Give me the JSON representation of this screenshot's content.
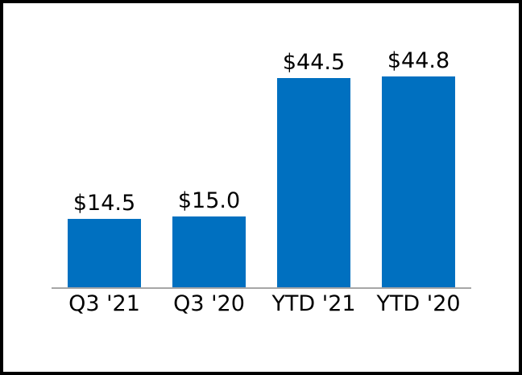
{
  "chart_data": {
    "type": "bar",
    "categories": [
      "Q3 '21",
      "Q3 '20",
      "YTD '21",
      "YTD '20"
    ],
    "values": [
      14.5,
      15.0,
      44.5,
      44.8
    ],
    "value_labels": [
      "$14.5",
      "$15.0",
      "$44.5",
      "$44.8"
    ],
    "title": "",
    "xlabel": "",
    "ylabel": "",
    "ylim": [
      0,
      45
    ],
    "grid": false,
    "legend": false,
    "bar_color": "#0070C0",
    "axis_line_color": "#A6A6A6",
    "text_color": "#000000",
    "frame_border_color": "#000000",
    "background_color": "#FFFFFF"
  }
}
